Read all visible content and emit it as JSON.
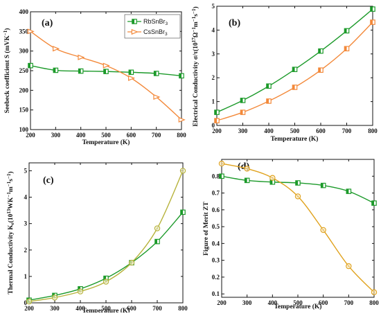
{
  "colors": {
    "rb": "#1c9a2a",
    "cs": "#f3893a",
    "kappa_cs": "#b7b33c",
    "zt_cs": "#e0a21d"
  },
  "chart_data": [
    {
      "panel": "a",
      "type": "line",
      "title": "",
      "xlabel": "Temperature (K)",
      "ylabel": "Seebeck coefficient S (mVK",
      "ylabel_sup": "−1",
      "ylabel_close": ")",
      "xlim": [
        200,
        800
      ],
      "ylim": [
        100,
        400
      ],
      "xticks": [
        200,
        300,
        400,
        500,
        600,
        700,
        800
      ],
      "yticks": [
        100,
        150,
        200,
        250,
        300,
        350,
        400
      ],
      "legend": "top-right",
      "series": [
        {
          "name": "RbSnBr",
          "sub": "3",
          "marker": "square",
          "x": [
            200,
            300,
            400,
            500,
            600,
            700,
            800
          ],
          "y": [
            263,
            251,
            249,
            248,
            246,
            243,
            237
          ]
        },
        {
          "name": "CsSnBr",
          "sub": "3",
          "marker": "triangle",
          "x": [
            200,
            300,
            400,
            500,
            600,
            700,
            800
          ],
          "y": [
            350,
            306,
            284,
            263,
            231,
            183,
            125
          ]
        }
      ]
    },
    {
      "panel": "b",
      "type": "line",
      "title": "",
      "xlabel": "Temperature (K)",
      "ylabel": "Electrical Conductivity σ/τ(10",
      "ylabel_sup": "17",
      "ylabel_mid": "Ω",
      "ylabel_sup2": "−1",
      "ylabel_mid2": "m",
      "ylabel_sup3": "−1",
      "ylabel_mid3": "s",
      "ylabel_sup4": "−1",
      "ylabel_close": ")",
      "xlim": [
        200,
        800
      ],
      "ylim": [
        0,
        5
      ],
      "xticks": [
        200,
        300,
        400,
        500,
        600,
        700,
        800
      ],
      "yticks": [
        0,
        1,
        2,
        3,
        4,
        5
      ],
      "series": [
        {
          "marker": "square",
          "x": [
            200,
            300,
            400,
            500,
            600,
            700,
            800
          ],
          "y": [
            0.55,
            1.05,
            1.65,
            2.35,
            3.12,
            3.97,
            4.88
          ]
        },
        {
          "marker": "square",
          "x": [
            200,
            300,
            400,
            500,
            600,
            700,
            800
          ],
          "y": [
            0.2,
            0.55,
            1.02,
            1.6,
            2.32,
            3.22,
            4.33
          ]
        }
      ]
    },
    {
      "panel": "c",
      "type": "line",
      "title": "",
      "xlabel": "Temperature (K)",
      "ylabel": "Thermal Conductivity K",
      "ylabel_sub": "e",
      "ylabel_mid": "(10",
      "ylabel_sup": "13",
      "ylabel_mid2": "WK",
      "ylabel_sup2": "−1",
      "ylabel_mid3": "m",
      "ylabel_sup3": "−1",
      "ylabel_mid4": "s",
      "ylabel_sup4": "−1",
      "ylabel_close": ")",
      "xlim": [
        200,
        800
      ],
      "ylim": [
        0,
        5.3
      ],
      "xticks": [
        200,
        300,
        400,
        500,
        600,
        700,
        800
      ],
      "yticks": [
        0,
        1,
        2,
        3,
        4,
        5
      ],
      "series": [
        {
          "marker": "square",
          "x": [
            200,
            300,
            400,
            500,
            600,
            700,
            800
          ],
          "y": [
            0.1,
            0.28,
            0.53,
            0.93,
            1.52,
            2.32,
            3.43
          ]
        },
        {
          "marker": "circle",
          "x": [
            200,
            300,
            400,
            500,
            600,
            700,
            800
          ],
          "y": [
            0.05,
            0.2,
            0.43,
            0.8,
            1.52,
            2.82,
            5.0
          ]
        }
      ]
    },
    {
      "panel": "d",
      "type": "line",
      "title": "",
      "xlabel": "Temperature (K)",
      "ylabel": "Figure of Merit ZT",
      "xlim": [
        200,
        800
      ],
      "ylim": [
        0.08,
        0.9
      ],
      "xticks": [
        200,
        300,
        400,
        500,
        600,
        700,
        800
      ],
      "yticks": [
        0.1,
        0.2,
        0.3,
        0.4,
        0.5,
        0.6,
        0.7,
        0.8
      ],
      "series": [
        {
          "marker": "square",
          "x": [
            200,
            300,
            400,
            500,
            600,
            700,
            800
          ],
          "y": [
            0.8,
            0.775,
            0.765,
            0.76,
            0.745,
            0.71,
            0.64
          ]
        },
        {
          "marker": "circle",
          "x": [
            200,
            300,
            400,
            500,
            600,
            700,
            800
          ],
          "y": [
            0.875,
            0.845,
            0.79,
            0.68,
            0.48,
            0.265,
            0.11
          ]
        }
      ]
    }
  ]
}
